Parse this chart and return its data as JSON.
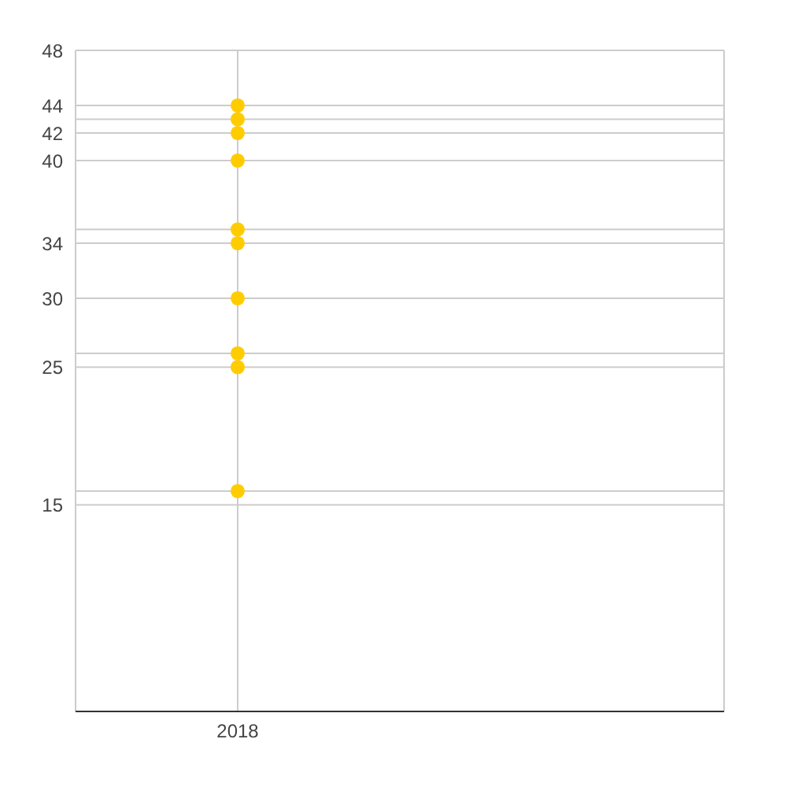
{
  "chart_data": {
    "type": "scatter",
    "categories": [
      "2018"
    ],
    "series": [
      {
        "color": "#ffcc00",
        "values": [
          16
        ]
      },
      {
        "color": "#ffcc00",
        "values": [
          25
        ]
      },
      {
        "color": "#ffcc00",
        "values": [
          26
        ]
      },
      {
        "color": "#ffcc00",
        "values": [
          30
        ]
      },
      {
        "color": "#ffcc00",
        "values": [
          34
        ]
      },
      {
        "color": "#ffcc00",
        "values": [
          35
        ]
      },
      {
        "color": "#ffcc00",
        "values": [
          40
        ]
      },
      {
        "color": "#ffcc00",
        "values": [
          42
        ]
      },
      {
        "color": "#ffcc00",
        "values": [
          43
        ]
      },
      {
        "color": "#ffcc00",
        "values": [
          44
        ]
      }
    ],
    "ylim": [
      0,
      48
    ],
    "yticks": [
      15,
      {
        "value": 16,
        "label": null
      },
      25,
      {
        "value": 26,
        "label": null
      },
      30,
      34,
      {
        "value": 35,
        "label": null
      },
      40,
      42,
      {
        "value": 43,
        "label": null
      },
      44,
      48
    ],
    "grid": true
  }
}
